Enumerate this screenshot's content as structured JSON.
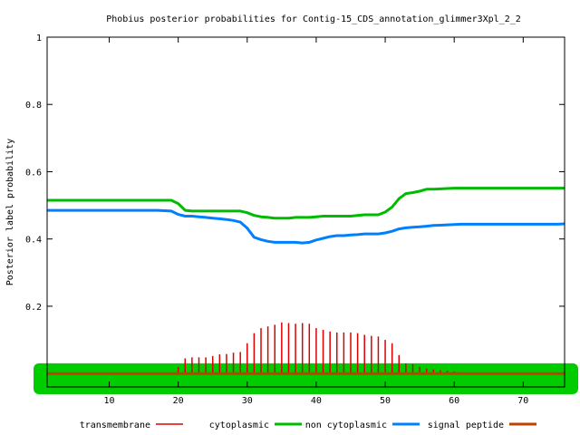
{
  "chart_data": {
    "type": "line",
    "title": "Phobius posterior probabilities for Contig-15_CDS_annotation_glimmer3Xpl_2_2",
    "xlabel": "",
    "ylabel": "Posterior label probability",
    "xlim": [
      1,
      76
    ],
    "ylim": [
      -0.04,
      1.0
    ],
    "x_ticks": [
      10,
      20,
      30,
      40,
      50,
      60,
      70
    ],
    "y_ticks": [
      0.2,
      0.4,
      0.6,
      0.8,
      1.0
    ],
    "y_tick_labels": [
      "0.2",
      "0.4",
      "0.6",
      "0.8",
      "1"
    ],
    "grid": false,
    "legend_position": "bottom",
    "colors": {
      "transmembrane": "#dd0000",
      "cytoplasmic": "#00bb00",
      "non_cytoplasmic": "#0080ff",
      "signal_peptide": "#c04000",
      "band": "#00cc00"
    },
    "x": [
      1,
      2,
      3,
      4,
      5,
      6,
      7,
      8,
      9,
      10,
      11,
      12,
      13,
      14,
      15,
      16,
      17,
      18,
      19,
      20,
      21,
      22,
      23,
      24,
      25,
      26,
      27,
      28,
      29,
      30,
      31,
      32,
      33,
      34,
      35,
      36,
      37,
      38,
      39,
      40,
      41,
      42,
      43,
      44,
      45,
      46,
      47,
      48,
      49,
      50,
      51,
      52,
      53,
      54,
      55,
      56,
      57,
      58,
      59,
      60,
      61,
      62,
      63,
      64,
      65,
      66,
      67,
      68,
      69,
      70,
      71,
      72,
      73,
      74,
      75,
      76
    ],
    "series": [
      {
        "name": "transmembrane",
        "style": "impulses",
        "values": [
          0,
          0,
          0,
          0,
          0,
          0,
          0,
          0,
          0,
          0,
          0,
          0,
          0,
          0,
          0,
          0,
          0,
          0,
          0.003,
          0.02,
          0.045,
          0.048,
          0.048,
          0.048,
          0.052,
          0.057,
          0.058,
          0.062,
          0.064,
          0.09,
          0.12,
          0.135,
          0.14,
          0.145,
          0.152,
          0.15,
          0.148,
          0.15,
          0.148,
          0.135,
          0.13,
          0.125,
          0.122,
          0.122,
          0.122,
          0.12,
          0.115,
          0.112,
          0.11,
          0.1,
          0.09,
          0.055,
          0.03,
          0.028,
          0.02,
          0.015,
          0.012,
          0.01,
          0.008,
          0.006,
          0.004,
          0.003,
          0.002,
          0.002,
          0.001,
          0.001,
          0.001,
          0.001,
          0.001,
          0.001,
          0.001,
          0.001,
          0.001,
          0.001,
          0.001,
          0.001
        ]
      },
      {
        "name": "cytoplasmic",
        "values": [
          0.515,
          0.515,
          0.515,
          0.515,
          0.515,
          0.515,
          0.515,
          0.515,
          0.515,
          0.515,
          0.515,
          0.515,
          0.515,
          0.515,
          0.515,
          0.515,
          0.515,
          0.515,
          0.515,
          0.505,
          0.485,
          0.483,
          0.483,
          0.483,
          0.483,
          0.483,
          0.483,
          0.483,
          0.483,
          0.478,
          0.47,
          0.466,
          0.464,
          0.462,
          0.462,
          0.462,
          0.464,
          0.464,
          0.464,
          0.466,
          0.468,
          0.468,
          0.468,
          0.468,
          0.468,
          0.47,
          0.472,
          0.472,
          0.472,
          0.48,
          0.495,
          0.52,
          0.535,
          0.538,
          0.542,
          0.548,
          0.548,
          0.549,
          0.55,
          0.551,
          0.551,
          0.551,
          0.551,
          0.551,
          0.551,
          0.551,
          0.551,
          0.551,
          0.551,
          0.551,
          0.551,
          0.551,
          0.551,
          0.551,
          0.551,
          0.551
        ]
      },
      {
        "name": "non cytoplasmic",
        "values": [
          0.485,
          0.485,
          0.485,
          0.485,
          0.485,
          0.485,
          0.485,
          0.485,
          0.485,
          0.485,
          0.485,
          0.485,
          0.485,
          0.485,
          0.485,
          0.485,
          0.485,
          0.484,
          0.483,
          0.473,
          0.468,
          0.468,
          0.466,
          0.464,
          0.462,
          0.46,
          0.458,
          0.455,
          0.45,
          0.432,
          0.405,
          0.398,
          0.393,
          0.39,
          0.39,
          0.39,
          0.39,
          0.388,
          0.39,
          0.397,
          0.402,
          0.407,
          0.41,
          0.41,
          0.412,
          0.413,
          0.415,
          0.415,
          0.415,
          0.418,
          0.423,
          0.43,
          0.433,
          0.435,
          0.436,
          0.438,
          0.44,
          0.441,
          0.442,
          0.443,
          0.444,
          0.444,
          0.444,
          0.444,
          0.444,
          0.444,
          0.444,
          0.444,
          0.444,
          0.444,
          0.444,
          0.444,
          0.444,
          0.444,
          0.444,
          0.445
        ]
      },
      {
        "name": "signal peptide",
        "values": [
          0,
          0,
          0,
          0,
          0,
          0,
          0,
          0,
          0,
          0,
          0,
          0,
          0,
          0,
          0,
          0,
          0,
          0,
          0,
          0,
          0,
          0,
          0,
          0,
          0,
          0,
          0,
          0,
          0,
          0,
          0,
          0,
          0,
          0,
          0,
          0,
          0,
          0,
          0,
          0,
          0,
          0,
          0,
          0,
          0,
          0,
          0,
          0,
          0,
          0,
          0,
          0,
          0,
          0,
          0,
          0,
          0,
          0,
          0,
          0,
          0,
          0,
          0,
          0,
          0,
          0,
          0,
          0,
          0,
          0,
          0,
          0,
          0,
          0,
          0,
          0
        ]
      }
    ],
    "band": {
      "from": -0.04,
      "to": 0.017
    }
  }
}
